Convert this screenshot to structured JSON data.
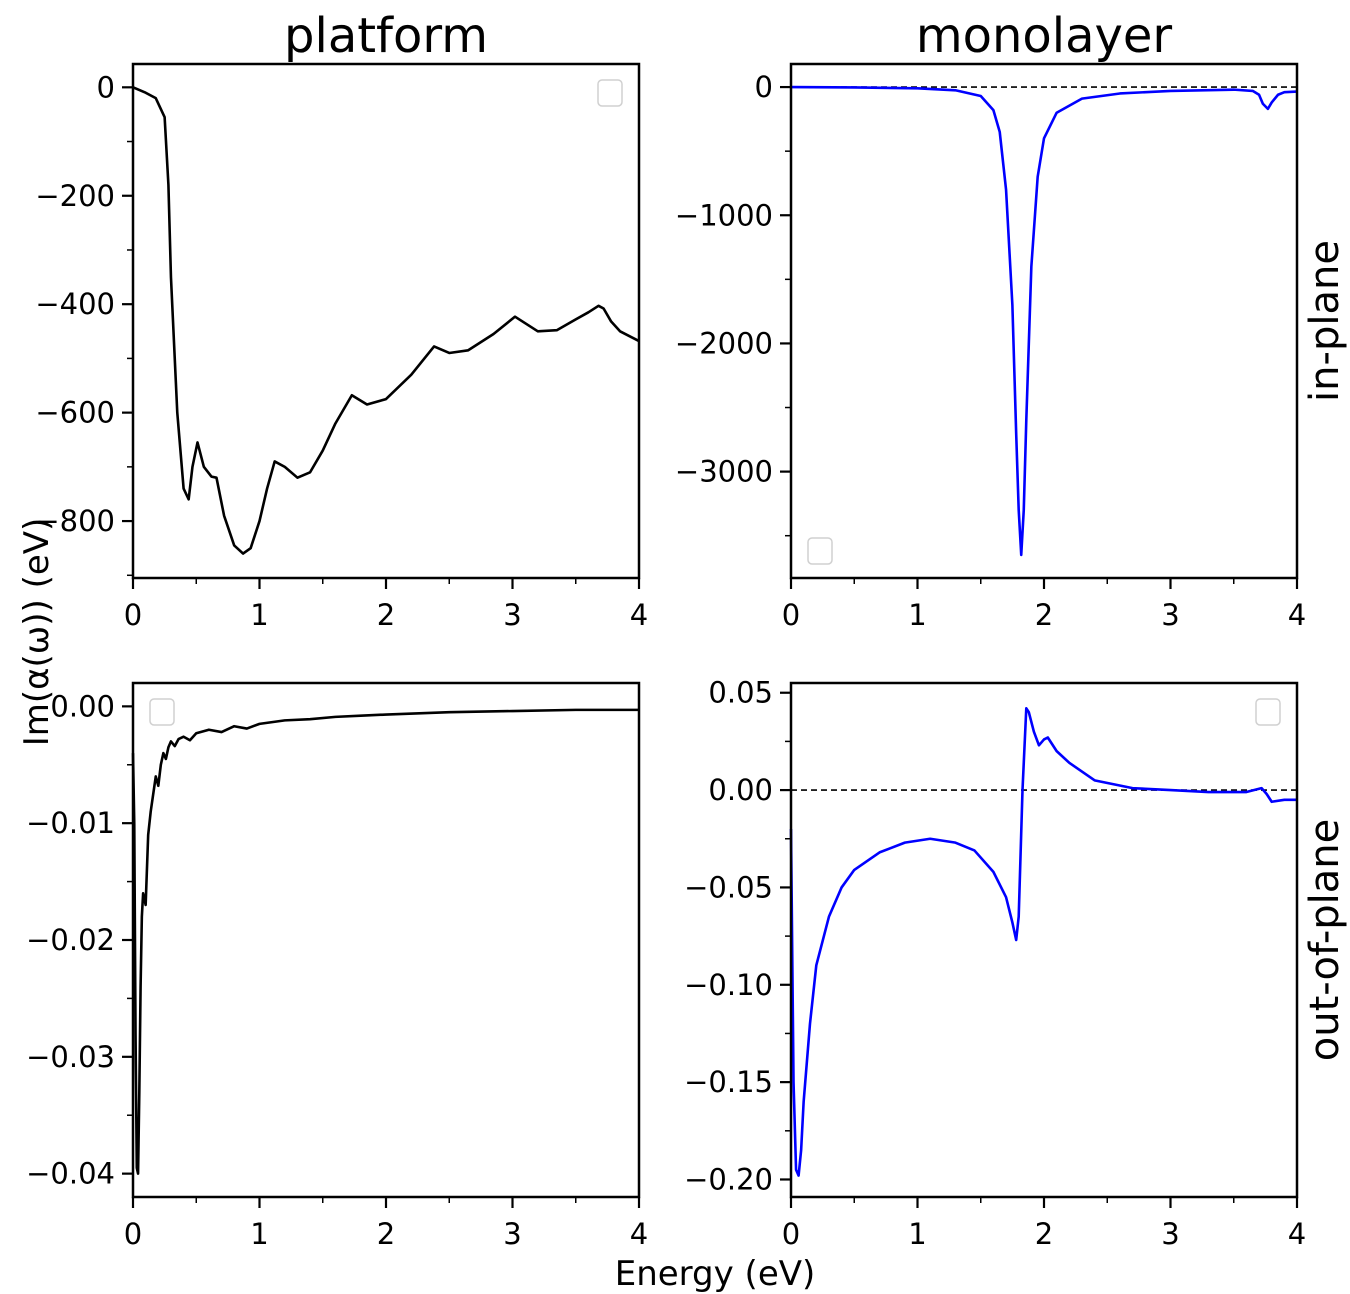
{
  "figure": {
    "ylabel": "Im(α(ω)) (eV)",
    "xlabel": "Energy (eV)",
    "column_titles": [
      "platform",
      "monolayer"
    ],
    "row_labels": [
      "in-plane",
      "out-of-plane"
    ]
  },
  "chart_data": [
    {
      "type": "line",
      "panel": "platform in-plane",
      "title": "platform",
      "xlim": [
        0,
        4
      ],
      "ylim": [
        -905,
        43
      ],
      "xticks": [
        0,
        1,
        2,
        3,
        4
      ],
      "xtick_labels": [
        "0",
        "1",
        "2",
        "3",
        "4"
      ],
      "yticks": [
        0,
        -200,
        -400,
        -600,
        -800
      ],
      "ytick_labels": [
        "0",
        "−200",
        "−400",
        "−600",
        "−800"
      ],
      "color": "#000000",
      "zero_line": false,
      "legend": "top-right (empty)",
      "grid": false,
      "series": [
        {
          "x": [
            0,
            0.1,
            0.18,
            0.25,
            0.28,
            0.3,
            0.35,
            0.4,
            0.44,
            0.47,
            0.51,
            0.56,
            0.62,
            0.66,
            0.72,
            0.8,
            0.87,
            0.93,
            1.0,
            1.06,
            1.12,
            1.2,
            1.3,
            1.4,
            1.5,
            1.6,
            1.73,
            1.85,
            2.0,
            2.2,
            2.38,
            2.5,
            2.65,
            2.85,
            3.02,
            3.1,
            3.2,
            3.35,
            3.5,
            3.6,
            3.68,
            3.72,
            3.78,
            3.85,
            3.95,
            4.0
          ],
          "y": [
            0,
            -10,
            -20,
            -55,
            -180,
            -350,
            -600,
            -740,
            -760,
            -700,
            -655,
            -700,
            -718,
            -720,
            -790,
            -845,
            -860,
            -850,
            -800,
            -740,
            -690,
            -700,
            -720,
            -710,
            -670,
            -620,
            -568,
            -585,
            -575,
            -530,
            -478,
            -490,
            -485,
            -455,
            -423,
            -435,
            -450,
            -448,
            -428,
            -415,
            -403,
            -408,
            -432,
            -450,
            -462,
            -468
          ]
        }
      ]
    },
    {
      "type": "line",
      "panel": "monolayer in-plane",
      "title": "monolayer",
      "row_label": "in-plane",
      "xlim": [
        0,
        4
      ],
      "ylim": [
        -3830,
        180
      ],
      "xticks": [
        0,
        1,
        2,
        3,
        4
      ],
      "xtick_labels": [
        "0",
        "1",
        "2",
        "3",
        "4"
      ],
      "yticks": [
        0,
        -1000,
        -2000,
        -3000
      ],
      "ytick_labels": [
        "0",
        "−1000",
        "−2000",
        "−3000"
      ],
      "color": "#0000ff",
      "zero_line": true,
      "legend": "bottom-left (empty)",
      "grid": false,
      "series": [
        {
          "x": [
            0,
            0.5,
            1.0,
            1.3,
            1.5,
            1.6,
            1.65,
            1.7,
            1.75,
            1.78,
            1.8,
            1.82,
            1.84,
            1.86,
            1.9,
            1.95,
            2.0,
            2.1,
            2.3,
            2.6,
            3.0,
            3.5,
            3.65,
            3.7,
            3.73,
            3.77,
            3.8,
            3.85,
            3.9,
            4.0
          ],
          "y": [
            0,
            -3,
            -10,
            -25,
            -70,
            -180,
            -350,
            -800,
            -1700,
            -2700,
            -3300,
            -3650,
            -3300,
            -2600,
            -1400,
            -700,
            -400,
            -200,
            -90,
            -50,
            -30,
            -20,
            -30,
            -60,
            -130,
            -170,
            -120,
            -60,
            -40,
            -35
          ]
        }
      ]
    },
    {
      "type": "line",
      "panel": "platform out-of-plane",
      "xlim": [
        0,
        4
      ],
      "ylim": [
        -0.042,
        0.002
      ],
      "xticks": [
        0,
        1,
        2,
        3,
        4
      ],
      "xtick_labels": [
        "0",
        "1",
        "2",
        "3",
        "4"
      ],
      "yticks": [
        0.0,
        -0.01,
        -0.02,
        -0.03,
        -0.04
      ],
      "ytick_labels": [
        "0.00",
        "−0.01",
        "−0.02",
        "−0.03",
        "−0.04"
      ],
      "color": "#000000",
      "zero_line": false,
      "legend": "top-left (empty)",
      "grid": false,
      "series": [
        {
          "x": [
            0,
            0.01,
            0.02,
            0.03,
            0.04,
            0.05,
            0.06,
            0.07,
            0.08,
            0.1,
            0.12,
            0.14,
            0.16,
            0.18,
            0.2,
            0.22,
            0.24,
            0.26,
            0.28,
            0.3,
            0.33,
            0.36,
            0.4,
            0.45,
            0.5,
            0.6,
            0.7,
            0.8,
            0.9,
            1.0,
            1.2,
            1.4,
            1.6,
            1.8,
            2.0,
            2.5,
            3.0,
            3.5,
            4.0
          ],
          "y": [
            -0.004,
            -0.01,
            -0.028,
            -0.0395,
            -0.04,
            -0.033,
            -0.024,
            -0.018,
            -0.016,
            -0.017,
            -0.011,
            -0.009,
            -0.0075,
            -0.006,
            -0.0068,
            -0.005,
            -0.004,
            -0.0045,
            -0.0035,
            -0.003,
            -0.0034,
            -0.0028,
            -0.0026,
            -0.0029,
            -0.0023,
            -0.002,
            -0.0022,
            -0.0017,
            -0.0019,
            -0.0015,
            -0.0012,
            -0.0011,
            -0.0009,
            -0.0008,
            -0.0007,
            -0.0005,
            -0.0004,
            -0.0003,
            -0.0003
          ]
        }
      ]
    },
    {
      "type": "line",
      "panel": "monolayer out-of-plane",
      "row_label": "out-of-plane",
      "xlim": [
        0,
        4
      ],
      "ylim": [
        -0.209,
        0.055
      ],
      "xticks": [
        0,
        1,
        2,
        3,
        4
      ],
      "xtick_labels": [
        "0",
        "1",
        "2",
        "3",
        "4"
      ],
      "yticks": [
        0.05,
        0.0,
        -0.05,
        -0.1,
        -0.15,
        -0.2
      ],
      "ytick_labels": [
        "0.05",
        "0.00",
        "−0.05",
        "−0.10",
        "−0.15",
        "−0.20"
      ],
      "color": "#0000ff",
      "zero_line": true,
      "legend": "top-right (empty)",
      "grid": false,
      "series": [
        {
          "x": [
            0,
            0.02,
            0.04,
            0.06,
            0.08,
            0.1,
            0.15,
            0.2,
            0.3,
            0.4,
            0.5,
            0.7,
            0.9,
            1.1,
            1.3,
            1.45,
            1.6,
            1.7,
            1.75,
            1.78,
            1.8,
            1.83,
            1.86,
            1.88,
            1.92,
            1.96,
            2.0,
            2.03,
            2.1,
            2.2,
            2.4,
            2.7,
            3.0,
            3.3,
            3.6,
            3.72,
            3.76,
            3.8,
            3.9,
            4.0
          ],
          "y": [
            -0.02,
            -0.15,
            -0.195,
            -0.198,
            -0.185,
            -0.16,
            -0.12,
            -0.09,
            -0.065,
            -0.05,
            -0.041,
            -0.032,
            -0.027,
            -0.025,
            -0.027,
            -0.031,
            -0.042,
            -0.055,
            -0.068,
            -0.077,
            -0.065,
            0.0,
            0.042,
            0.04,
            0.03,
            0.023,
            0.026,
            0.027,
            0.02,
            0.014,
            0.005,
            0.001,
            0.0,
            -0.001,
            -0.001,
            0.001,
            -0.002,
            -0.006,
            -0.005,
            -0.005
          ]
        }
      ]
    }
  ]
}
